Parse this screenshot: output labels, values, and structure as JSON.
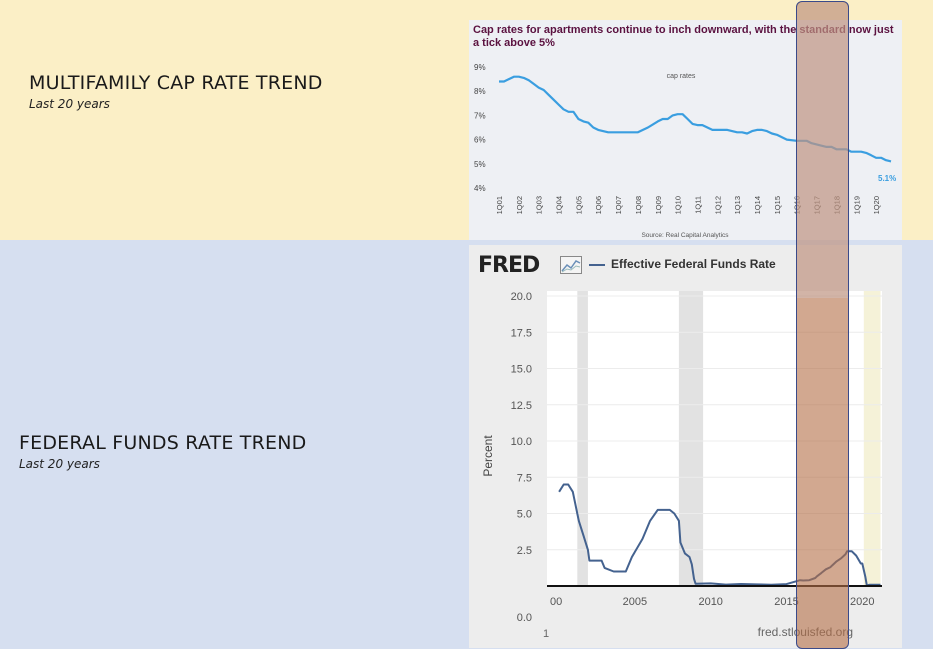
{
  "left_labels": {
    "cap_title": "MULTIFAMILY CAP RATE TREND",
    "cap_sub": "Last 20 years",
    "fed_title": "FEDERAL FUNDS RATE TREND",
    "fed_sub": "Last 20 years"
  },
  "colors": {
    "top_band": "#fbefc6",
    "bottom_band": "#d6dff0",
    "cap_line": "#3a9ee0",
    "cap_title": "#5b1240",
    "fred_line": "#44628f",
    "highlight": "#b46e46"
  },
  "chart_data": [
    {
      "type": "line",
      "title": "Cap rates for apartments continue to inch downward, with the standard now just a tick above 5%",
      "series": [
        {
          "name": "cap rates",
          "x": [
            2001.0,
            2001.25,
            2001.5,
            2001.75,
            2002.0,
            2002.25,
            2002.5,
            2002.75,
            2003.0,
            2003.25,
            2003.5,
            2003.75,
            2004.0,
            2004.25,
            2004.5,
            2004.75,
            2005.0,
            2005.25,
            2005.5,
            2005.75,
            2006.0,
            2006.5,
            2007.0,
            2007.5,
            2008.0,
            2008.5,
            2009.0,
            2009.25,
            2009.5,
            2009.75,
            2010.0,
            2010.25,
            2010.5,
            2010.75,
            2011.0,
            2011.25,
            2011.5,
            2011.75,
            2012.0,
            2012.5,
            2013.0,
            2013.25,
            2013.5,
            2013.75,
            2014.0,
            2014.25,
            2014.5,
            2014.75,
            2015.0,
            2015.5,
            2016.0,
            2016.25,
            2016.5,
            2016.75,
            2017.0,
            2017.25,
            2017.5,
            2017.75,
            2018.0,
            2018.25,
            2018.5,
            2018.75,
            2019.0,
            2019.25,
            2019.5,
            2019.75,
            2020.0,
            2020.25,
            2020.5,
            2020.75
          ],
          "y": [
            8.4,
            8.4,
            8.5,
            8.6,
            8.6,
            8.55,
            8.45,
            8.3,
            8.15,
            8.05,
            7.85,
            7.65,
            7.45,
            7.25,
            7.15,
            7.15,
            6.85,
            6.75,
            6.7,
            6.5,
            6.4,
            6.3,
            6.3,
            6.3,
            6.3,
            6.5,
            6.75,
            6.85,
            6.85,
            7.0,
            7.05,
            7.05,
            6.85,
            6.65,
            6.6,
            6.6,
            6.5,
            6.4,
            6.4,
            6.4,
            6.3,
            6.3,
            6.25,
            6.35,
            6.4,
            6.4,
            6.35,
            6.25,
            6.2,
            6.0,
            5.95,
            5.95,
            5.95,
            5.85,
            5.8,
            5.75,
            5.7,
            5.7,
            5.6,
            5.6,
            5.6,
            5.5,
            5.5,
            5.5,
            5.45,
            5.35,
            5.25,
            5.25,
            5.15,
            5.1
          ]
        }
      ],
      "end_label": "5.1%",
      "y_ticks": [
        "4%",
        "5%",
        "6%",
        "7%",
        "8%",
        "9%"
      ],
      "ylim": [
        4,
        9
      ],
      "x_ticks": [
        "1Q01",
        "1Q02",
        "1Q03",
        "1Q04",
        "1Q05",
        "1Q06",
        "1Q07",
        "1Q08",
        "1Q09",
        "1Q10",
        "1Q11",
        "1Q12",
        "1Q13",
        "1Q14",
        "1Q15",
        "1Q16",
        "1Q17",
        "1Q18",
        "1Q19",
        "1Q20"
      ],
      "source": "Source: Real Capital Analytics",
      "grid": false,
      "legend": "top-center"
    },
    {
      "type": "line",
      "title": "FRED",
      "series": [
        {
          "name": "Effective Federal Funds Rate",
          "x": [
            2000.0,
            2000.3,
            2000.6,
            2000.9,
            2001.1,
            2001.3,
            2001.6,
            2001.9,
            2002.0,
            2002.5,
            2002.8,
            2003.0,
            2003.6,
            2004.4,
            2004.8,
            2005.5,
            2006.0,
            2006.5,
            2007.0,
            2007.3,
            2007.6,
            2007.9,
            2008.0,
            2008.3,
            2008.6,
            2008.75,
            2008.9,
            2009.0,
            2010.0,
            2011.0,
            2012.0,
            2013.0,
            2014.0,
            2015.0,
            2015.9,
            2016.1,
            2016.5,
            2016.9,
            2017.0,
            2017.3,
            2017.6,
            2017.9,
            2018.0,
            2018.3,
            2018.6,
            2018.9,
            2019.0,
            2019.3,
            2019.6,
            2019.9,
            2020.0,
            2020.2,
            2020.3,
            2020.5,
            2021.0,
            2021.2
          ],
          "y": [
            6.5,
            7.0,
            7.0,
            6.5,
            5.5,
            4.5,
            3.5,
            2.5,
            1.75,
            1.75,
            1.75,
            1.25,
            1.0,
            1.0,
            2.0,
            3.25,
            4.5,
            5.25,
            5.25,
            5.25,
            5.0,
            4.5,
            3.0,
            2.25,
            2.0,
            1.5,
            0.5,
            0.15,
            0.18,
            0.1,
            0.14,
            0.11,
            0.09,
            0.13,
            0.4,
            0.38,
            0.4,
            0.55,
            0.66,
            0.9,
            1.15,
            1.3,
            1.41,
            1.7,
            1.91,
            2.2,
            2.4,
            2.4,
            2.1,
            1.55,
            1.55,
            0.65,
            0.05,
            0.09,
            0.08,
            0.08
          ]
        }
      ],
      "ylabel": "Percent",
      "y_ticks": [
        "0.0",
        "2.5",
        "5.0",
        "7.5",
        "10.0",
        "12.5",
        "15.0",
        "17.5",
        "20.0"
      ],
      "ylim": [
        0,
        20
      ],
      "x_ticks": [
        "00",
        "2005",
        "2010",
        "2015",
        "2020"
      ],
      "recessions": [
        [
          2001.2,
          2001.9
        ],
        [
          2007.9,
          2009.5
        ],
        [
          2020.1,
          2021.2
        ]
      ],
      "source": "fred.stlouisfed.org",
      "footnote": "1",
      "grid": true,
      "legend": "top"
    }
  ]
}
